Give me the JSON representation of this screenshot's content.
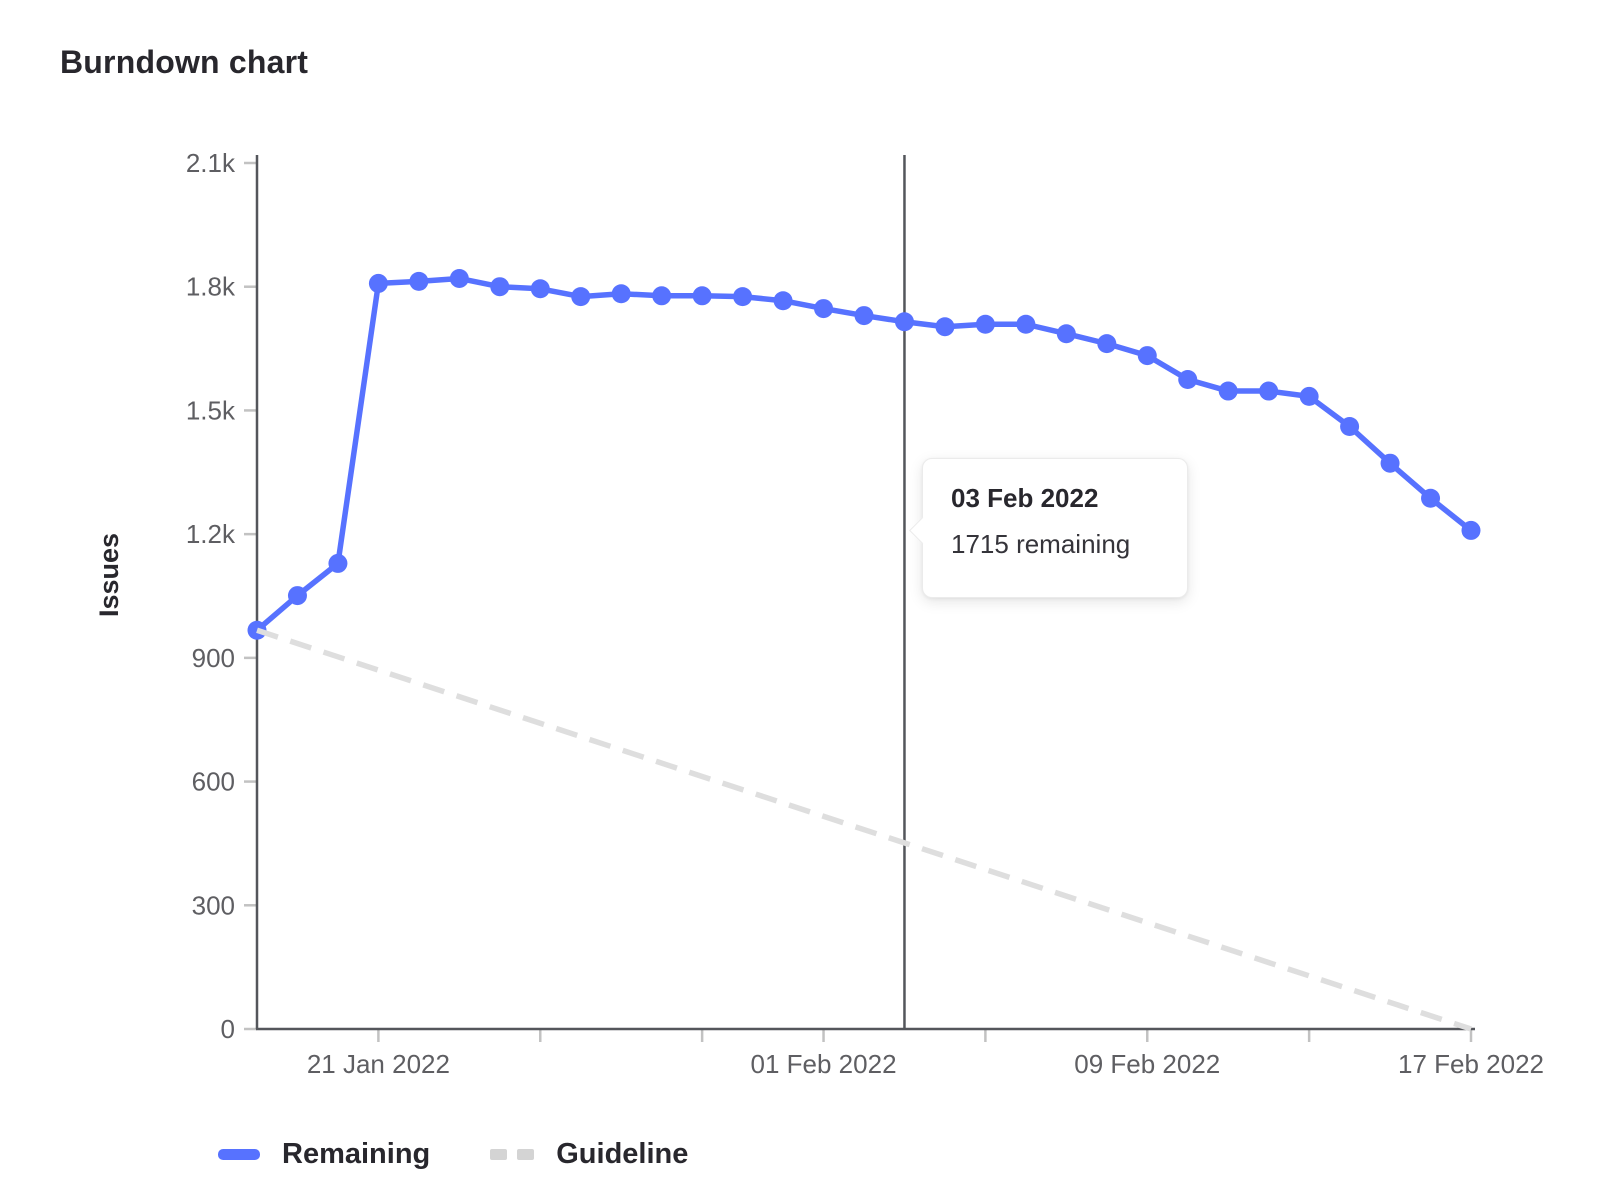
{
  "page": {
    "title": "Burndown chart"
  },
  "chart_data": {
    "type": "line",
    "title": "Burndown chart",
    "xlabel": "",
    "ylabel": "Issues",
    "ylim": [
      0,
      2100
    ],
    "grid": false,
    "legend_position": "bottom-left",
    "x_axis_note": "days indexed from 18 Jan 2022 (day 0) to 17 Feb 2022 (day 30)",
    "y_ticks": [
      {
        "value": 0,
        "label": "0"
      },
      {
        "value": 300,
        "label": "300"
      },
      {
        "value": 600,
        "label": "600"
      },
      {
        "value": 900,
        "label": "900"
      },
      {
        "value": 1200,
        "label": "1.2k"
      },
      {
        "value": 1500,
        "label": "1.5k"
      },
      {
        "value": 1800,
        "label": "1.8k"
      },
      {
        "value": 2100,
        "label": "2.1k"
      }
    ],
    "x_ticks": [
      {
        "day": 3,
        "label": "21 Jan 2022"
      },
      {
        "day": 7,
        "label": ""
      },
      {
        "day": 11,
        "label": ""
      },
      {
        "day": 14,
        "label": "01 Feb 2022"
      },
      {
        "day": 18,
        "label": ""
      },
      {
        "day": 22,
        "label": "09 Feb 2022"
      },
      {
        "day": 26,
        "label": ""
      },
      {
        "day": 30,
        "label": "17 Feb 2022"
      }
    ],
    "series": [
      {
        "name": "Remaining",
        "color": "#5772ff",
        "style": "solid",
        "show_points": true,
        "x": [
          0,
          1,
          2,
          3,
          4,
          5,
          6,
          7,
          8,
          9,
          10,
          11,
          12,
          13,
          14,
          15,
          16,
          17,
          18,
          19,
          20,
          21,
          22,
          23,
          24,
          25,
          26,
          27,
          28,
          29,
          30
        ],
        "values": [
          967,
          1051,
          1129,
          1808,
          1813,
          1820,
          1800,
          1795,
          1776,
          1783,
          1778,
          1778,
          1776,
          1766,
          1747,
          1730,
          1715,
          1703,
          1709,
          1709,
          1686,
          1662,
          1633,
          1575,
          1547,
          1547,
          1534,
          1461,
          1372,
          1287,
          1209
        ]
      },
      {
        "name": "Guideline",
        "color": "#dedede",
        "style": "dashed",
        "show_points": false,
        "x": [
          0,
          30
        ],
        "values": [
          967,
          0
        ]
      }
    ],
    "hover": {
      "day": 16,
      "date": "03 Feb 2022",
      "value_text": "1715 remaining"
    }
  },
  "tooltip": {
    "title": "03 Feb 2022",
    "body": "1715 remaining"
  },
  "legend": {
    "items": [
      {
        "label": "Remaining",
        "color": "#5772ff",
        "dashed": false
      },
      {
        "label": "Guideline",
        "color": "#d4d4d4",
        "dashed": true
      }
    ]
  },
  "colors": {
    "remaining_line": "#5772ff",
    "guideline": "#dedede",
    "axis_line": "#54565b",
    "tick_mark": "#c2c2c2",
    "tick_text": "#5e5e62",
    "axis_title_text": "#28272d",
    "hover_line": "#54565b",
    "background": "#ffffff"
  }
}
